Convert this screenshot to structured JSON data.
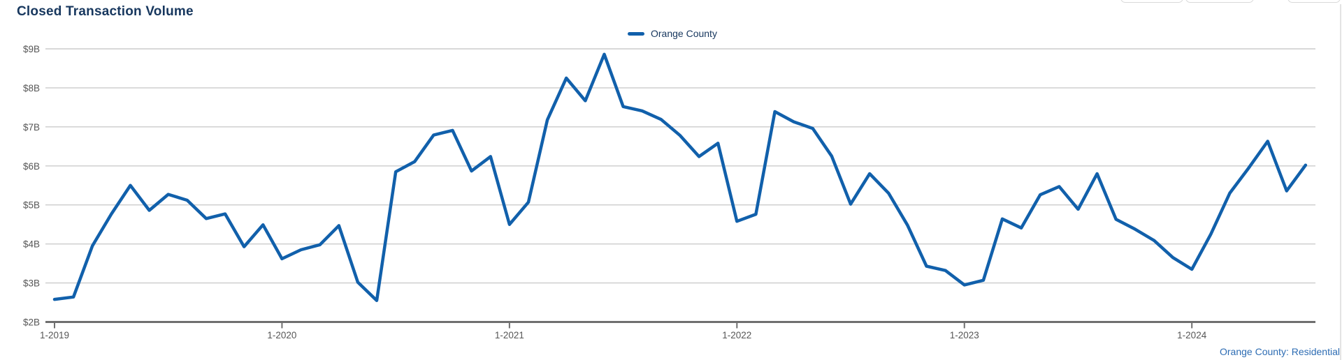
{
  "header": {
    "title": "Closed Transaction Volume"
  },
  "legend": {
    "series_label": "Orange County"
  },
  "footer": {
    "caption": "Orange County: Residential"
  },
  "colors": {
    "line": "#1160ab",
    "title_text": "#17375e",
    "legend_text": "#17375e",
    "footer_text": "#2d6cb3",
    "gridline": "#cbcbcb",
    "axis_line": "#6f6f6f",
    "axis_label": "#565656"
  },
  "chart_data": {
    "type": "line",
    "title": "Closed Transaction Volume",
    "frequency": "monthly",
    "start": "2019-01",
    "end": "2024-07",
    "x_tick_labels": [
      "1-2019",
      "1-2020",
      "1-2021",
      "1-2022",
      "1-2023",
      "1-2024"
    ],
    "x_tick_month_index": [
      0,
      12,
      24,
      36,
      48,
      60
    ],
    "y_tick_labels": [
      "$2B",
      "$3B",
      "$4B",
      "$5B",
      "$6B",
      "$7B",
      "$8B",
      "$9B"
    ],
    "y_tick_values": [
      2,
      3,
      4,
      5,
      6,
      7,
      8,
      9
    ],
    "ylim": [
      2,
      9
    ],
    "unit": "billions USD",
    "grid": true,
    "legend_position": "top-center",
    "series": [
      {
        "name": "Orange County",
        "values": [
          2.58,
          2.64,
          3.95,
          4.77,
          5.5,
          4.86,
          5.27,
          5.12,
          4.65,
          4.77,
          3.93,
          4.49,
          3.62,
          3.85,
          3.98,
          4.47,
          3.02,
          2.55,
          5.85,
          6.11,
          6.79,
          6.91,
          5.87,
          6.24,
          4.5,
          5.07,
          7.18,
          8.25,
          7.67,
          8.86,
          7.52,
          7.41,
          7.19,
          6.78,
          6.24,
          6.58,
          4.58,
          4.76,
          7.39,
          7.13,
          6.96,
          6.25,
          5.02,
          5.8,
          5.3,
          4.48,
          3.43,
          3.32,
          2.95,
          3.07,
          4.64,
          4.41,
          5.26,
          5.47,
          4.89,
          5.8,
          4.63,
          4.38,
          4.09,
          3.65,
          3.35,
          4.25,
          5.3,
          5.95,
          6.63,
          5.36,
          6.02
        ]
      }
    ]
  }
}
